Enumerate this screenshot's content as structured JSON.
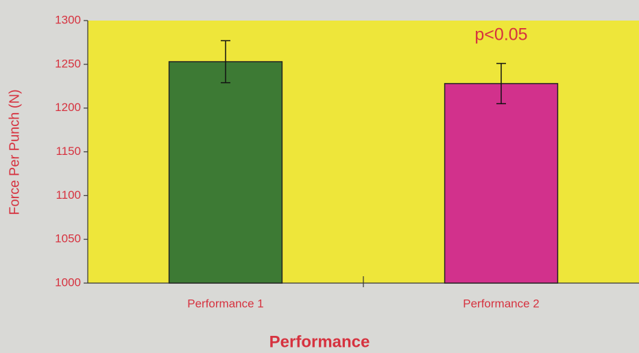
{
  "chart_data": {
    "type": "bar",
    "categories": [
      "Performance 1",
      "Performance 2"
    ],
    "values": [
      1253,
      1228
    ],
    "errors": [
      24,
      23
    ],
    "colors": [
      "#3d7a34",
      "#d2318c"
    ],
    "xlabel": "Performance",
    "ylabel": "Force Per Punch (N)",
    "annotation": "p<0.05",
    "ylim": [
      1000,
      1300
    ],
    "yticks": [
      1000,
      1050,
      1100,
      1150,
      1200,
      1250,
      1300
    ],
    "grid": false
  }
}
